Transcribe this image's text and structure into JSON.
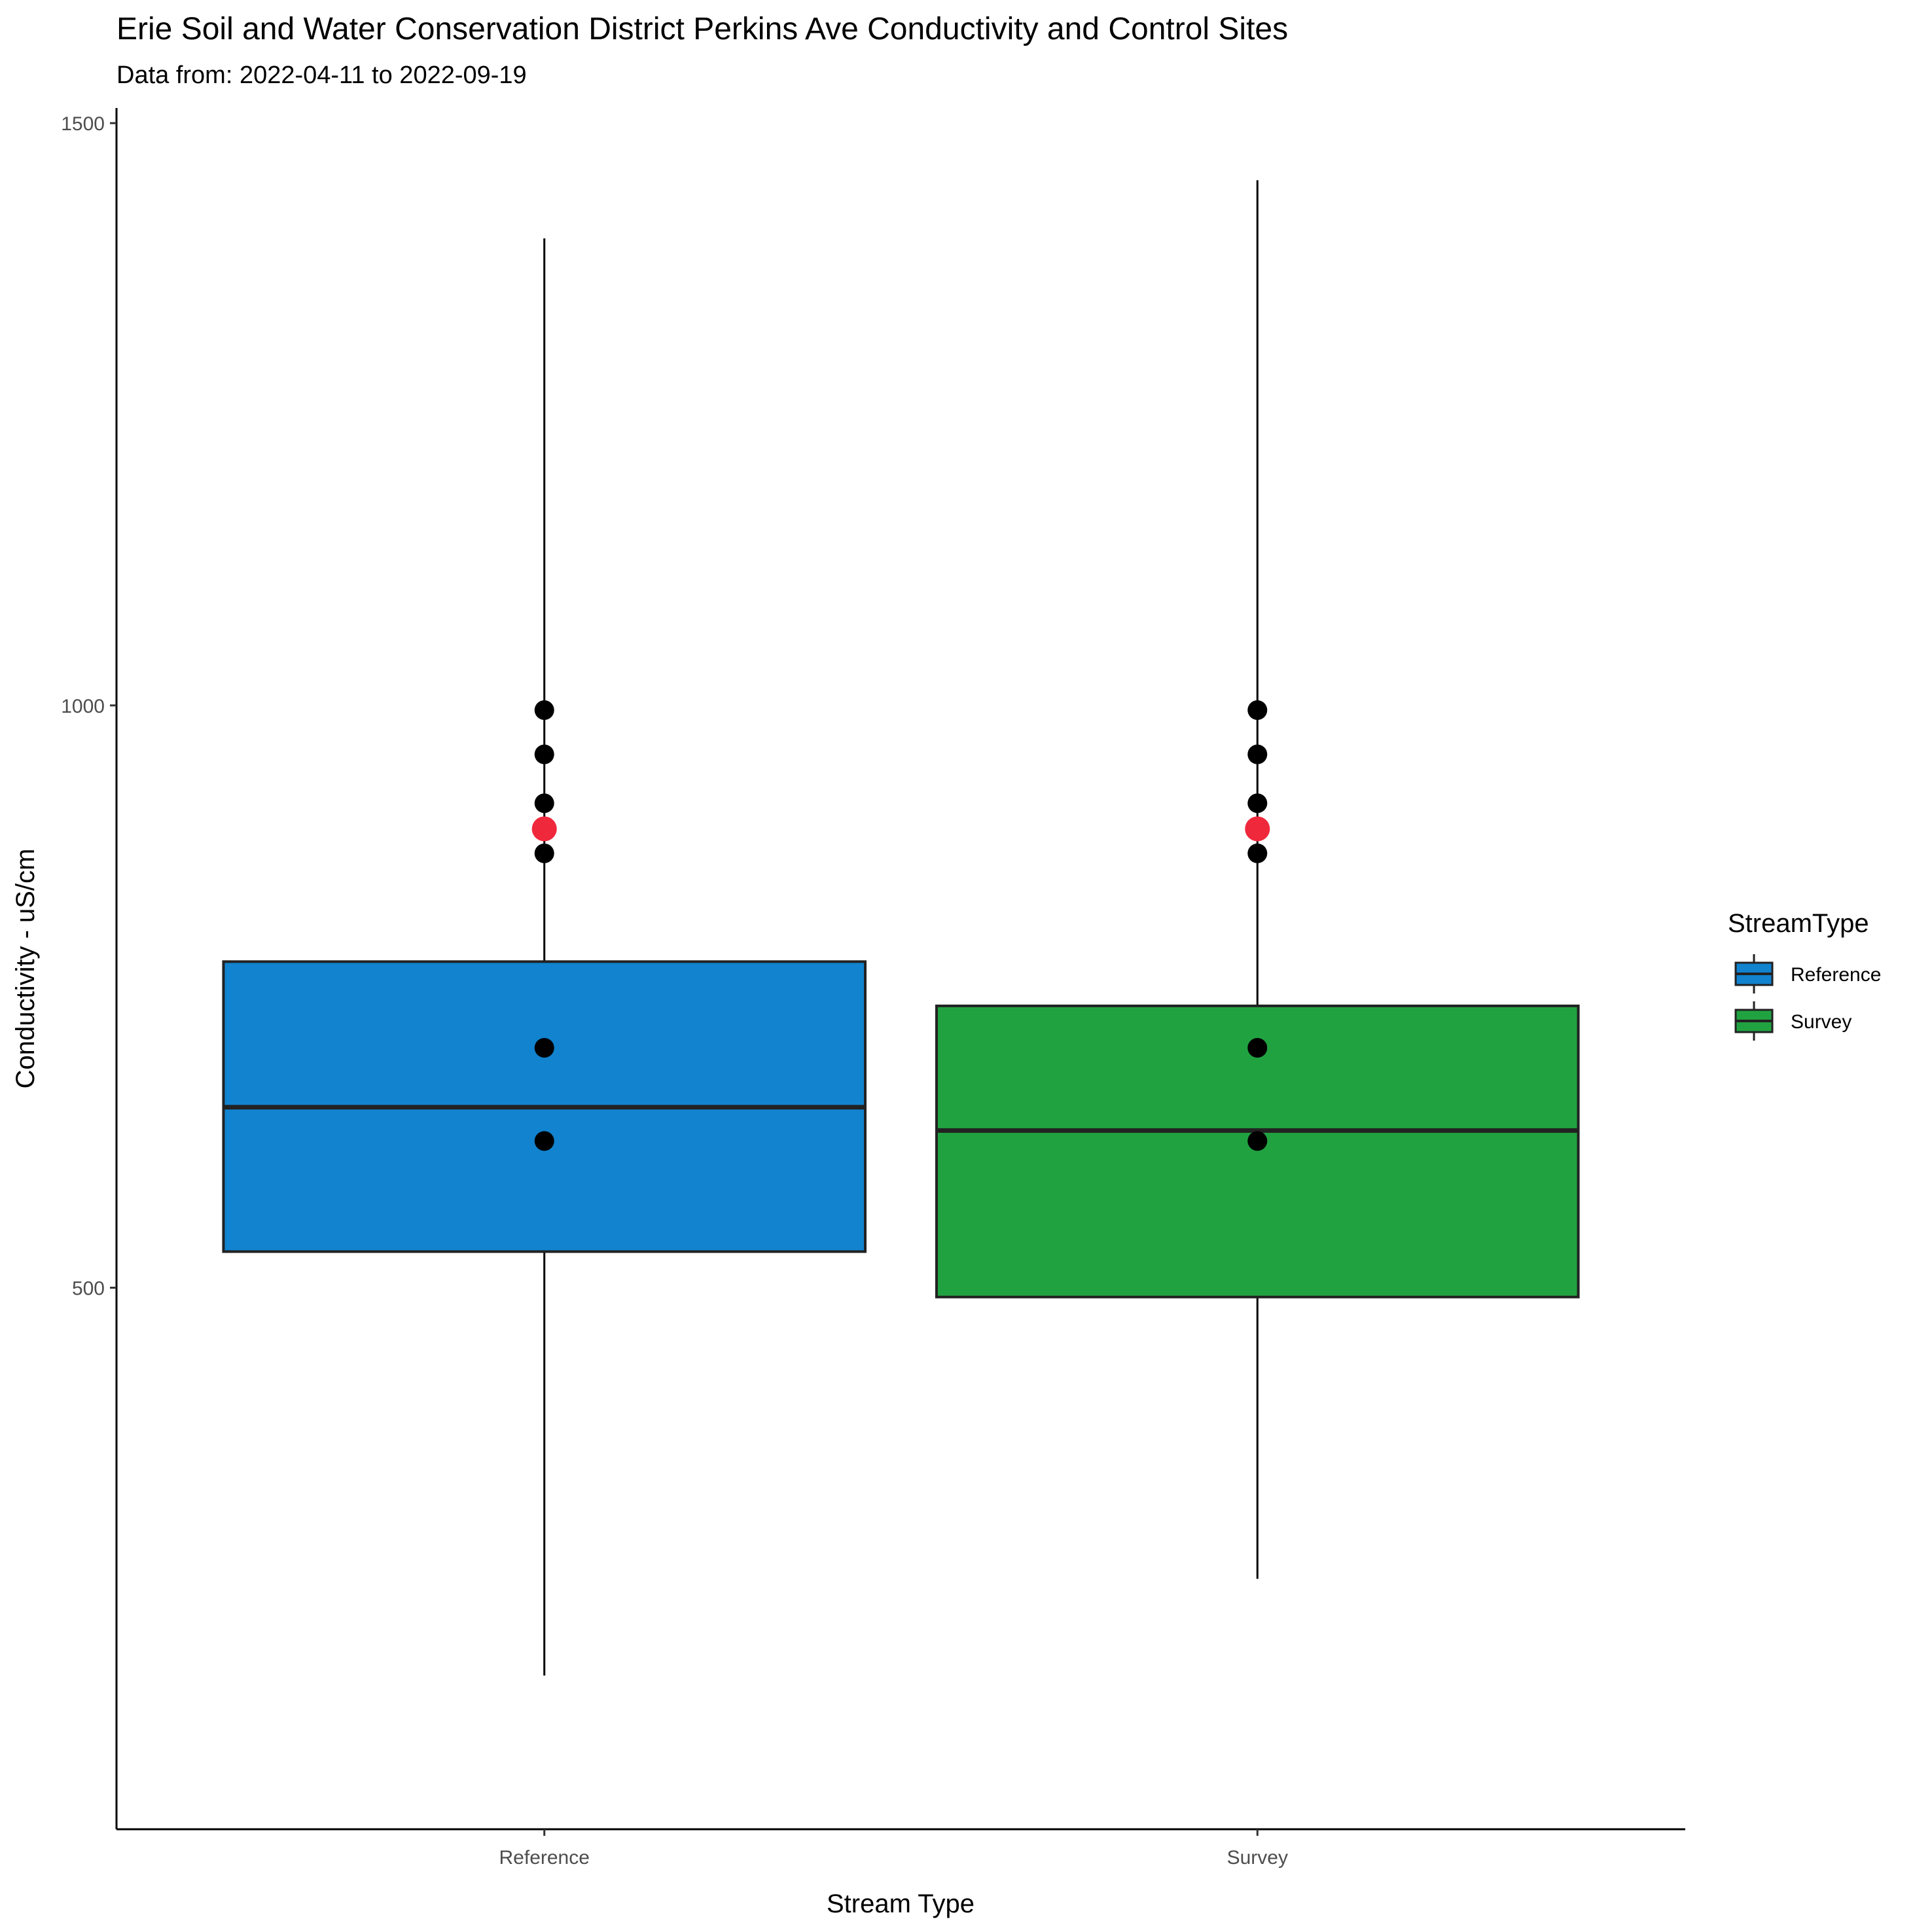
{
  "chart_data": {
    "type": "box",
    "title": "Erie Soil and Water Conservation District Perkins Ave Conductivity and Control Sites",
    "subtitle": "Data from: 2022-04-11 to 2022-09-19",
    "xlabel": "Stream Type",
    "ylabel": "Conductivity - uS/cm",
    "ylim": [
      35,
      1513
    ],
    "yticks": [
      500,
      1000,
      1500
    ],
    "grid": false,
    "legend": {
      "title": "StreamType",
      "position": "right"
    },
    "categories": [
      "Reference",
      "Survey"
    ],
    "series": [
      {
        "name": "Reference",
        "color": "#1183cf",
        "whisker_low": 167,
        "q1": 531,
        "median": 655,
        "q3": 780,
        "whisker_high": 1401,
        "points": [
          996,
          958,
          916,
          873,
          706,
          626
        ],
        "highlight": [
          894
        ]
      },
      {
        "name": "Survey",
        "color": "#21a241",
        "whisker_low": 250,
        "q1": 492,
        "median": 635,
        "q3": 742,
        "whisker_high": 1451,
        "points": [
          996,
          958,
          916,
          873,
          706,
          626
        ],
        "highlight": [
          894
        ]
      }
    ],
    "highlight_color": "#f0283c"
  }
}
